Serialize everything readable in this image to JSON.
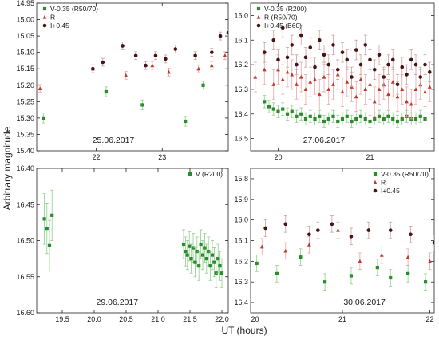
{
  "figure": {
    "ylabel": "Arbitrary magnitude",
    "xlabel": "UT (hours)"
  },
  "colors": {
    "V": "#2a8c2a",
    "R": "#c0392b",
    "I": "#4a1212",
    "V_err": "#8fcf8f",
    "R_err": "#e9a6a6",
    "I_err": "#caa0a0"
  },
  "chart_data": [
    {
      "type": "scatter",
      "date": "25.06.2017",
      "xlim": [
        21.1,
        24.0
      ],
      "ylim": [
        15.4,
        14.95
      ],
      "xticks": [
        22,
        23
      ],
      "yticks": [
        14.95,
        15.0,
        15.05,
        15.1,
        15.15,
        15.2,
        15.25,
        15.3,
        15.35,
        15.4
      ],
      "ytick_labels": [
        "14.95",
        "15.00",
        "15.05",
        "15.10",
        "15.15",
        "15.20",
        "15.25",
        "15.30",
        "15.35",
        "15.40"
      ],
      "legend_position": "top-left",
      "series": [
        {
          "name": "V-0.35 (R50/70)",
          "key": "V",
          "marker": "square",
          "x": [
            21.2,
            22.15,
            22.7,
            23.35,
            23.62
          ],
          "y": [
            15.3,
            15.22,
            15.26,
            15.31,
            15.2
          ],
          "err": [
            0.015,
            0.015,
            0.015,
            0.015,
            0.012
          ]
        },
        {
          "name": "R",
          "key": "R",
          "marker": "triangle",
          "x": [
            21.15,
            21.95,
            22.45,
            22.85,
            23.1,
            23.55,
            23.75,
            23.95
          ],
          "y": [
            15.21,
            15.15,
            15.17,
            15.14,
            15.16,
            15.15,
            15.14,
            15.11
          ],
          "err": [
            0.012,
            0.012,
            0.012,
            0.012,
            0.012,
            0.012,
            0.012,
            0.012
          ]
        },
        {
          "name": "I+0.45",
          "key": "I",
          "marker": "circle",
          "x": [
            21.95,
            22.1,
            22.4,
            22.6,
            22.75,
            22.9,
            23.05,
            23.2,
            23.5,
            23.75,
            23.88,
            24.0
          ],
          "y": [
            15.15,
            15.13,
            15.08,
            15.11,
            15.14,
            15.11,
            15.12,
            15.09,
            15.11,
            15.1,
            15.05,
            15.04
          ],
          "err": [
            0.012,
            0.012,
            0.012,
            0.012,
            0.012,
            0.012,
            0.012,
            0.012,
            0.012,
            0.012,
            0.012,
            0.012
          ]
        }
      ]
    },
    {
      "type": "scatter",
      "date": "27.06.2017",
      "xlim": [
        19.7,
        21.7
      ],
      "ylim": [
        16.55,
        15.95
      ],
      "xticks": [
        20,
        21
      ],
      "yticks": [
        16.0,
        16.1,
        16.2,
        16.3,
        16.4,
        16.5
      ],
      "ytick_labels": [
        "16.0",
        "16.1",
        "16.2",
        "16.3",
        "16.4",
        "16.5"
      ],
      "legend_position": "top-left",
      "series": [
        {
          "name": "V-0.35 (R200)",
          "key": "V",
          "marker": "square",
          "x": [
            19.85,
            19.9,
            19.95,
            20.0,
            20.05,
            20.1,
            20.15,
            20.2,
            20.25,
            20.3,
            20.35,
            20.4,
            20.45,
            20.5,
            20.55,
            20.6,
            20.65,
            20.7,
            20.75,
            20.8,
            20.85,
            20.9,
            20.95,
            21.0,
            21.05,
            21.1,
            21.15,
            21.2,
            21.25,
            21.3,
            21.35,
            21.4,
            21.45,
            21.5,
            21.55,
            21.6
          ],
          "y": [
            16.35,
            16.37,
            16.38,
            16.39,
            16.38,
            16.4,
            16.39,
            16.41,
            16.4,
            16.42,
            16.41,
            16.42,
            16.41,
            16.43,
            16.42,
            16.41,
            16.43,
            16.42,
            16.41,
            16.43,
            16.42,
            16.41,
            16.42,
            16.43,
            16.42,
            16.41,
            16.42,
            16.41,
            16.42,
            16.43,
            16.42,
            16.41,
            16.42,
            16.42,
            16.41,
            16.42
          ],
          "err": [
            0.025,
            0.025,
            0.025,
            0.025,
            0.025,
            0.025,
            0.025,
            0.025,
            0.025,
            0.025,
            0.025,
            0.025,
            0.025,
            0.025,
            0.025,
            0.025,
            0.025,
            0.025,
            0.025,
            0.025,
            0.025,
            0.025,
            0.025,
            0.025,
            0.025,
            0.025,
            0.025,
            0.025,
            0.025,
            0.025,
            0.025,
            0.025,
            0.025,
            0.025,
            0.025,
            0.025
          ]
        },
        {
          "name": "R (R50/70)",
          "key": "R",
          "marker": "triangle",
          "x": [
            19.75,
            19.85,
            19.95,
            20.0,
            20.05,
            20.1,
            20.15,
            20.2,
            20.25,
            20.3,
            20.35,
            20.4,
            20.45,
            20.5,
            20.55,
            20.6,
            20.65,
            20.7,
            20.75,
            20.8,
            20.85,
            20.9,
            20.95,
            21.0,
            21.05,
            21.1,
            21.15,
            21.2,
            21.25,
            21.3,
            21.35,
            21.4,
            21.45,
            21.5,
            21.55,
            21.6,
            21.65
          ],
          "y": [
            16.25,
            16.22,
            16.28,
            16.22,
            16.26,
            16.23,
            16.24,
            16.28,
            16.25,
            16.3,
            16.27,
            16.26,
            16.32,
            16.25,
            16.3,
            16.28,
            16.24,
            16.31,
            16.27,
            16.29,
            16.33,
            16.26,
            16.3,
            16.28,
            16.35,
            16.3,
            16.28,
            16.32,
            16.27,
            16.33,
            16.3,
            16.35,
            16.36,
            16.3,
            16.28,
            16.31,
            16.29
          ],
          "err": [
            0.06,
            0.06,
            0.06,
            0.06,
            0.06,
            0.06,
            0.06,
            0.06,
            0.06,
            0.06,
            0.06,
            0.06,
            0.06,
            0.06,
            0.06,
            0.06,
            0.06,
            0.06,
            0.06,
            0.06,
            0.06,
            0.06,
            0.06,
            0.06,
            0.06,
            0.06,
            0.06,
            0.06,
            0.06,
            0.06,
            0.06,
            0.06,
            0.06,
            0.06,
            0.06,
            0.06,
            0.06
          ]
        },
        {
          "name": "I+0.45 (B60)",
          "key": "I",
          "marker": "circle",
          "x": [
            19.85,
            19.95,
            20.0,
            20.05,
            20.1,
            20.15,
            20.2,
            20.25,
            20.3,
            20.35,
            20.4,
            20.45,
            20.5,
            20.55,
            20.6,
            20.65,
            20.7,
            20.75,
            20.8,
            20.85,
            20.9,
            20.95,
            21.0,
            21.05,
            21.1,
            21.15,
            21.2,
            21.25,
            21.3,
            21.35,
            21.4,
            21.45,
            21.5,
            21.55,
            21.6,
            21.65
          ],
          "y": [
            16.15,
            16.1,
            16.18,
            16.05,
            16.17,
            16.12,
            16.2,
            16.08,
            16.17,
            16.13,
            16.21,
            16.1,
            16.16,
            16.2,
            16.12,
            16.22,
            16.15,
            16.18,
            16.25,
            16.14,
            16.2,
            16.12,
            16.18,
            16.22,
            16.16,
            16.25,
            16.2,
            16.18,
            16.28,
            16.21,
            16.24,
            16.18,
            16.2,
            16.25,
            16.2,
            16.23
          ],
          "err": [
            0.04,
            0.04,
            0.04,
            0.04,
            0.04,
            0.04,
            0.04,
            0.04,
            0.04,
            0.04,
            0.04,
            0.04,
            0.04,
            0.04,
            0.04,
            0.04,
            0.04,
            0.04,
            0.04,
            0.04,
            0.04,
            0.04,
            0.04,
            0.04,
            0.04,
            0.04,
            0.04,
            0.04,
            0.04,
            0.04,
            0.04,
            0.04,
            0.04,
            0.04,
            0.04,
            0.04
          ]
        }
      ]
    },
    {
      "type": "scatter",
      "date": "29.06.2017",
      "xlim": [
        19.1,
        22.1
      ],
      "ylim": [
        16.6,
        16.4
      ],
      "xticks": [
        19.5,
        20.0,
        20.5,
        21.0,
        21.5,
        22.0
      ],
      "xtick_labels": [
        "19.5",
        "20.0",
        "20.5",
        "21.0",
        "21.5",
        "22.0"
      ],
      "yticks": [
        16.4,
        16.45,
        16.5,
        16.55,
        16.6
      ],
      "ytick_labels": [
        "16.40",
        "16.45",
        "16.50",
        "16.55",
        "16.60"
      ],
      "legend_position": "top-right",
      "series": [
        {
          "name": "V (R200)",
          "key": "V",
          "marker": "square",
          "x": [
            19.22,
            19.26,
            19.3,
            19.34,
            21.4,
            21.43,
            21.46,
            21.49,
            21.52,
            21.55,
            21.58,
            21.61,
            21.64,
            21.67,
            21.7,
            21.73,
            21.76,
            21.79,
            21.82,
            21.85,
            21.88,
            21.91,
            21.94,
            21.97,
            22.0
          ],
          "y": [
            16.47,
            16.483,
            16.507,
            16.465,
            16.505,
            16.515,
            16.52,
            16.508,
            16.525,
            16.51,
            16.53,
            16.515,
            16.535,
            16.505,
            16.52,
            16.51,
            16.525,
            16.515,
            16.535,
            16.52,
            16.53,
            16.545,
            16.525,
            16.535,
            16.545
          ],
          "err": [
            0.035,
            0.035,
            0.035,
            0.035,
            0.02,
            0.02,
            0.02,
            0.02,
            0.02,
            0.02,
            0.02,
            0.02,
            0.02,
            0.02,
            0.02,
            0.02,
            0.02,
            0.02,
            0.02,
            0.02,
            0.02,
            0.02,
            0.02,
            0.02,
            0.02
          ]
        }
      ]
    },
    {
      "type": "scatter",
      "date": "30.06.2017",
      "xlim": [
        19.95,
        22.05
      ],
      "ylim": [
        16.45,
        15.75
      ],
      "xticks": [
        20,
        21,
        22
      ],
      "yticks": [
        15.8,
        15.9,
        16.0,
        16.1,
        16.2,
        16.3,
        16.4
      ],
      "ytick_labels": [
        "15.8",
        "15.9",
        "16.0",
        "16.1",
        "16.2",
        "16.3",
        "16.4"
      ],
      "legend_position": "top-right",
      "series": [
        {
          "name": "V-0.35 (R50/70)",
          "key": "V",
          "marker": "square",
          "x": [
            20.02,
            20.25,
            20.52,
            20.8,
            21.1,
            21.4,
            21.55,
            21.75,
            21.95
          ],
          "y": [
            16.21,
            16.26,
            16.18,
            16.3,
            16.27,
            16.23,
            16.28,
            16.26,
            16.3
          ],
          "err": [
            0.04,
            0.04,
            0.04,
            0.04,
            0.04,
            0.04,
            0.04,
            0.04,
            0.04
          ]
        },
        {
          "name": "R",
          "key": "R",
          "marker": "triangle",
          "x": [
            20.08,
            20.35,
            20.62,
            20.95,
            21.2,
            21.45,
            21.75,
            22.0
          ],
          "y": [
            16.13,
            16.15,
            16.12,
            16.05,
            16.2,
            16.17,
            16.18,
            16.2
          ],
          "err": [
            0.04,
            0.04,
            0.04,
            0.04,
            0.04,
            0.04,
            0.04,
            0.04
          ]
        },
        {
          "name": "I+0.45",
          "key": "I",
          "marker": "circle",
          "x": [
            20.12,
            20.35,
            20.62,
            20.72,
            20.88,
            21.1,
            21.3,
            21.55,
            21.78,
            22.05
          ],
          "y": [
            16.04,
            16.02,
            16.07,
            16.05,
            16.02,
            16.08,
            16.05,
            16.05,
            16.07,
            16.11
          ],
          "err": [
            0.04,
            0.04,
            0.04,
            0.04,
            0.04,
            0.04,
            0.04,
            0.04,
            0.04,
            0.04
          ]
        }
      ]
    }
  ]
}
